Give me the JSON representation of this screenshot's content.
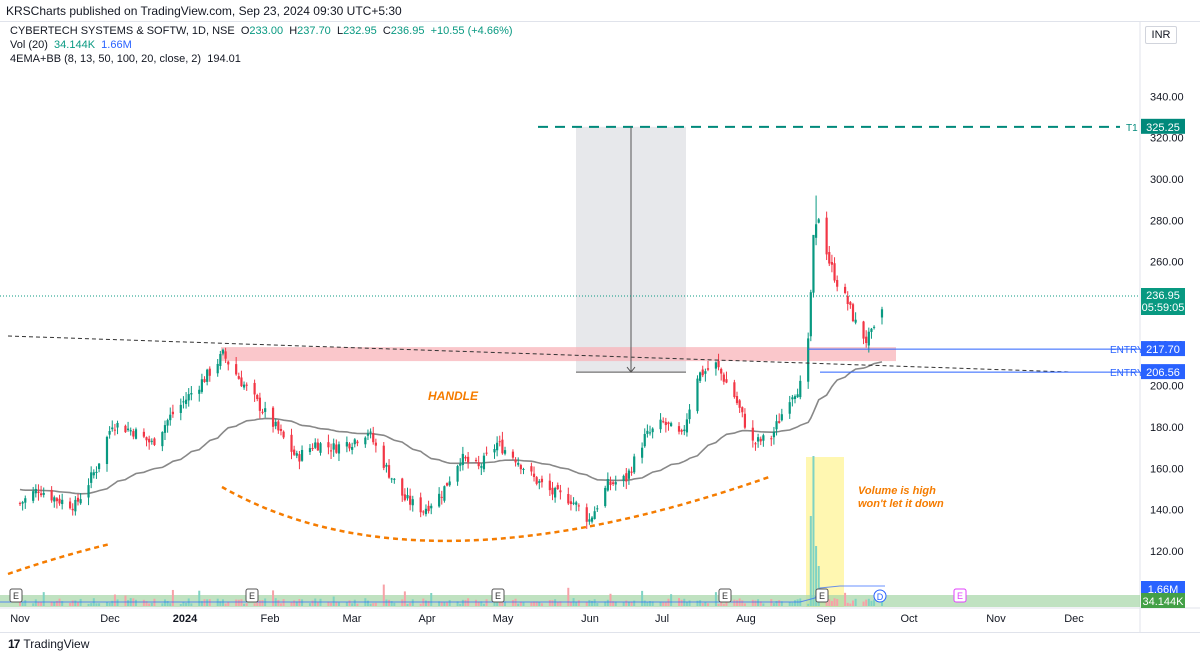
{
  "header": {
    "published": "KRSCharts published on TradingView.com, Sep 23, 2024 09:30 UTC+5:30"
  },
  "legend": {
    "symbol": "CYBERTECH SYSTEMS & SOFTW, 1D, NSE",
    "o_label": "O",
    "o_value": "233.00",
    "h_label": "H",
    "h_value": "237.70",
    "l_label": "L",
    "l_value": "232.95",
    "c_label": "C",
    "c_value": "236.95",
    "change": "+10.55 (+4.66%)",
    "vol_label": "Vol (20)",
    "vol_value1": "34.144K",
    "vol_value2": "1.66M",
    "ema_label": "4EMA+BB (8, 13, 50, 100, 20, close, 2)",
    "ema_value": "194.01"
  },
  "currency": "INR",
  "footer": {
    "brand": "TradingView"
  },
  "colors": {
    "up": "#089981",
    "down": "#f23645",
    "ema": "#888888",
    "entry": "#2962ff",
    "target": "#00897b",
    "orange": "#f57c00"
  },
  "chart_data": {
    "type": "candlestick",
    "x_ticks": [
      "Nov",
      "Dec",
      "2024",
      "Feb",
      "Mar",
      "Apr",
      "May",
      "Jun",
      "Jul",
      "Aug",
      "Sep",
      "Oct",
      "Nov",
      "Dec"
    ],
    "y_ticks": [
      120.0,
      140.0,
      160.0,
      180.0,
      200.0,
      220.0,
      240.0,
      260.0,
      280.0,
      300.0,
      320.0,
      340.0
    ],
    "ylim": [
      106,
      350
    ],
    "last_price": {
      "value": "236.95",
      "countdown": "05:59:05"
    },
    "volume_labels": [
      "1.66M",
      "34.144K"
    ],
    "levels": [
      {
        "name": "ENTRY",
        "value": "217.70"
      },
      {
        "name": "ENTRY",
        "value": "206.56"
      },
      {
        "name": "T1",
        "value": "325.25"
      }
    ],
    "annotations": [
      "HANDLE",
      "Volume is high",
      "won't let it down"
    ],
    "event_markers": [
      "E",
      "E",
      "E",
      "E",
      "E",
      "D",
      "E"
    ],
    "anchors": [
      {
        "date": "2023-11-01",
        "close": 143
      },
      {
        "date": "2023-11-08",
        "close": 150
      },
      {
        "date": "2023-11-15",
        "close": 145
      },
      {
        "date": "2023-11-22",
        "close": 142
      },
      {
        "date": "2023-11-30",
        "close": 160
      },
      {
        "date": "2023-12-06",
        "close": 182
      },
      {
        "date": "2023-12-14",
        "close": 178
      },
      {
        "date": "2023-12-21",
        "close": 172
      },
      {
        "date": "2023-12-28",
        "close": 185
      },
      {
        "date": "2024-01-04",
        "close": 195
      },
      {
        "date": "2024-01-11",
        "close": 205
      },
      {
        "date": "2024-01-17",
        "close": 215
      },
      {
        "date": "2024-01-24",
        "close": 202
      },
      {
        "date": "2024-01-31",
        "close": 190
      },
      {
        "date": "2024-02-07",
        "close": 178
      },
      {
        "date": "2024-02-14",
        "close": 165
      },
      {
        "date": "2024-02-21",
        "close": 172
      },
      {
        "date": "2024-02-28",
        "close": 170
      },
      {
        "date": "2024-03-06",
        "close": 173
      },
      {
        "date": "2024-03-12",
        "close": 178
      },
      {
        "date": "2024-03-19",
        "close": 160
      },
      {
        "date": "2024-03-26",
        "close": 145
      },
      {
        "date": "2024-04-02",
        "close": 140
      },
      {
        "date": "2024-04-09",
        "close": 148
      },
      {
        "date": "2024-04-16",
        "close": 165
      },
      {
        "date": "2024-04-23",
        "close": 160
      },
      {
        "date": "2024-04-30",
        "close": 172
      },
      {
        "date": "2024-05-07",
        "close": 165
      },
      {
        "date": "2024-05-14",
        "close": 155
      },
      {
        "date": "2024-05-21",
        "close": 148
      },
      {
        "date": "2024-05-28",
        "close": 145
      },
      {
        "date": "2024-06-04",
        "close": 135
      },
      {
        "date": "2024-06-11",
        "close": 152
      },
      {
        "date": "2024-06-18",
        "close": 155
      },
      {
        "date": "2024-06-25",
        "close": 175
      },
      {
        "date": "2024-07-02",
        "close": 182
      },
      {
        "date": "2024-07-09",
        "close": 175
      },
      {
        "date": "2024-07-15",
        "close": 205
      },
      {
        "date": "2024-07-22",
        "close": 210
      },
      {
        "date": "2024-07-29",
        "close": 195
      },
      {
        "date": "2024-08-05",
        "close": 172
      },
      {
        "date": "2024-08-12",
        "close": 175
      },
      {
        "date": "2024-08-19",
        "close": 195
      },
      {
        "date": "2024-08-23",
        "close": 200
      },
      {
        "date": "2024-08-26",
        "close": 220
      },
      {
        "date": "2024-08-28",
        "close": 270
      },
      {
        "date": "2024-08-30",
        "close": 282
      },
      {
        "date": "2024-09-03",
        "close": 260
      },
      {
        "date": "2024-09-06",
        "close": 250
      },
      {
        "date": "2024-09-10",
        "close": 240
      },
      {
        "date": "2024-09-13",
        "close": 230
      },
      {
        "date": "2024-09-17",
        "close": 222
      },
      {
        "date": "2024-09-20",
        "close": 226
      },
      {
        "date": "2024-09-23",
        "close": 236.95
      }
    ]
  }
}
